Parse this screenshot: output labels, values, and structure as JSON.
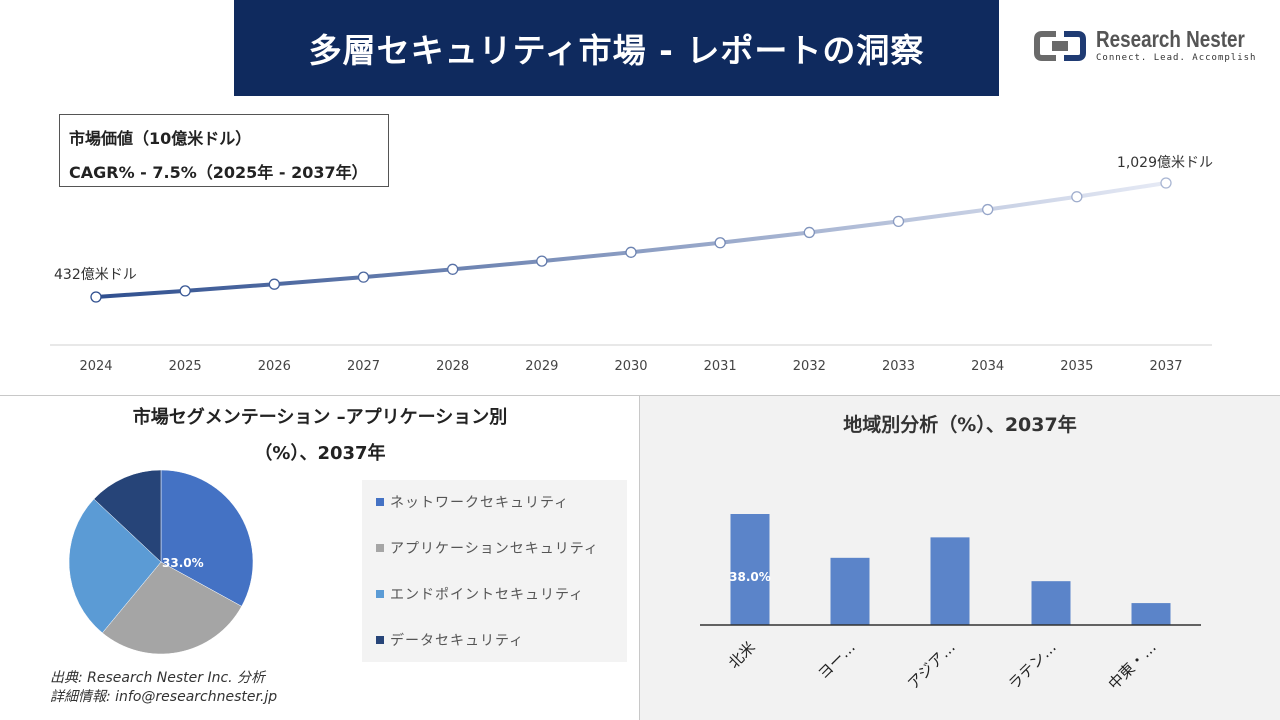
{
  "header": {
    "title": "多層セキュリティ市場 - レポートの洞察",
    "logo_name": "Research Nester",
    "logo_tagline": "Connect. Lead. Accomplish"
  },
  "info": {
    "line1": "市場価値（10億米ドル）",
    "line2": "CAGR% - 7.5%（2025年 - 2037年）"
  },
  "pie_section": {
    "title_line1": "市場セグメンテーション –アプリケーション別",
    "title_line2": "（%）、2037年"
  },
  "bar_section": {
    "title": "地域別分析（%）、2037年"
  },
  "source": {
    "line1": "出典: Research Nester Inc. 分析",
    "line2": "詳細情報: info@researchnester.jp"
  },
  "colors": {
    "banner": "#0f2a5e",
    "line_start": "#2f4f8f",
    "line_end": "#e6eaf5",
    "bar": "#5b84c9",
    "pie": [
      "#4472c4",
      "#a5a5a5",
      "#5b9bd5",
      "#264478"
    ]
  },
  "chart_data": [
    {
      "type": "line",
      "categories": [
        "2024",
        "2025",
        "2026",
        "2027",
        "2028",
        "2029",
        "2030",
        "2031",
        "2032",
        "2033",
        "2034",
        "2035",
        "2037"
      ],
      "values": [
        43.2,
        46.4,
        49.9,
        53.6,
        57.7,
        62.0,
        66.6,
        71.6,
        77.0,
        82.8,
        89.0,
        95.7,
        102.9
      ],
      "annotations": [
        {
          "index": 0,
          "label": "432億米ドル"
        },
        {
          "index": 12,
          "label": "1,029億米ドル"
        }
      ],
      "grid": false
    },
    {
      "type": "pie",
      "labels": [
        "ネットワークセキュリティ",
        "アプリケーションセキュリティ",
        "エンドポイントセキュリティ",
        "データセキュリティ"
      ],
      "values": [
        33.0,
        28.0,
        26.0,
        13.0
      ],
      "data_labels": [
        "33.0%",
        "",
        "",
        ""
      ],
      "legend": "right"
    },
    {
      "type": "bar",
      "categories": [
        "北米",
        "ヨー…",
        "アジア…",
        "ラテン…",
        "中東・…"
      ],
      "values": [
        38.0,
        23.0,
        30.0,
        15.0,
        7.5
      ],
      "data_labels": [
        "38.0%",
        "",
        "",
        "",
        ""
      ]
    }
  ]
}
